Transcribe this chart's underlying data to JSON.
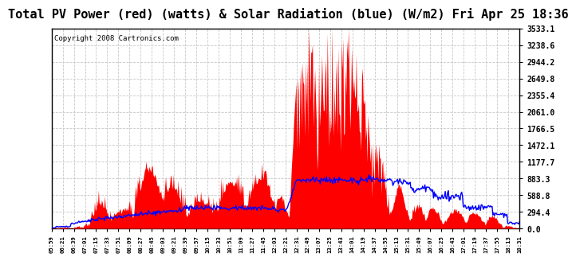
{
  "title": "Total PV Power (red) (watts) & Solar Radiation (blue) (W/m2) Fri Apr 25 18:36",
  "copyright": "Copyright 2008 Cartronics.com",
  "ymin": 0.0,
  "ymax": 3533.1,
  "yticks": [
    0.0,
    294.4,
    588.8,
    883.3,
    1177.7,
    1472.1,
    1766.5,
    2061.0,
    2355.4,
    2649.8,
    2944.2,
    3238.6,
    3533.1
  ],
  "xtick_labels": [
    "05:59",
    "06:21",
    "06:39",
    "07:01",
    "07:15",
    "07:33",
    "07:51",
    "08:09",
    "08:27",
    "08:45",
    "09:03",
    "09:21",
    "09:39",
    "09:57",
    "10:15",
    "10:33",
    "10:51",
    "11:09",
    "11:27",
    "11:45",
    "12:03",
    "12:21",
    "12:31",
    "12:49",
    "13:07",
    "13:25",
    "13:43",
    "14:01",
    "14:19",
    "14:37",
    "14:55",
    "15:13",
    "15:31",
    "15:49",
    "16:07",
    "16:25",
    "16:43",
    "17:01",
    "17:19",
    "17:37",
    "17:55",
    "18:13",
    "18:31"
  ],
  "bg_color": "#ffffff",
  "grid_color": "#c8c8c8",
  "red_color": "#ff0000",
  "blue_color": "#0000ff",
  "title_fontsize": 11,
  "copyright_fontsize": 6.5
}
